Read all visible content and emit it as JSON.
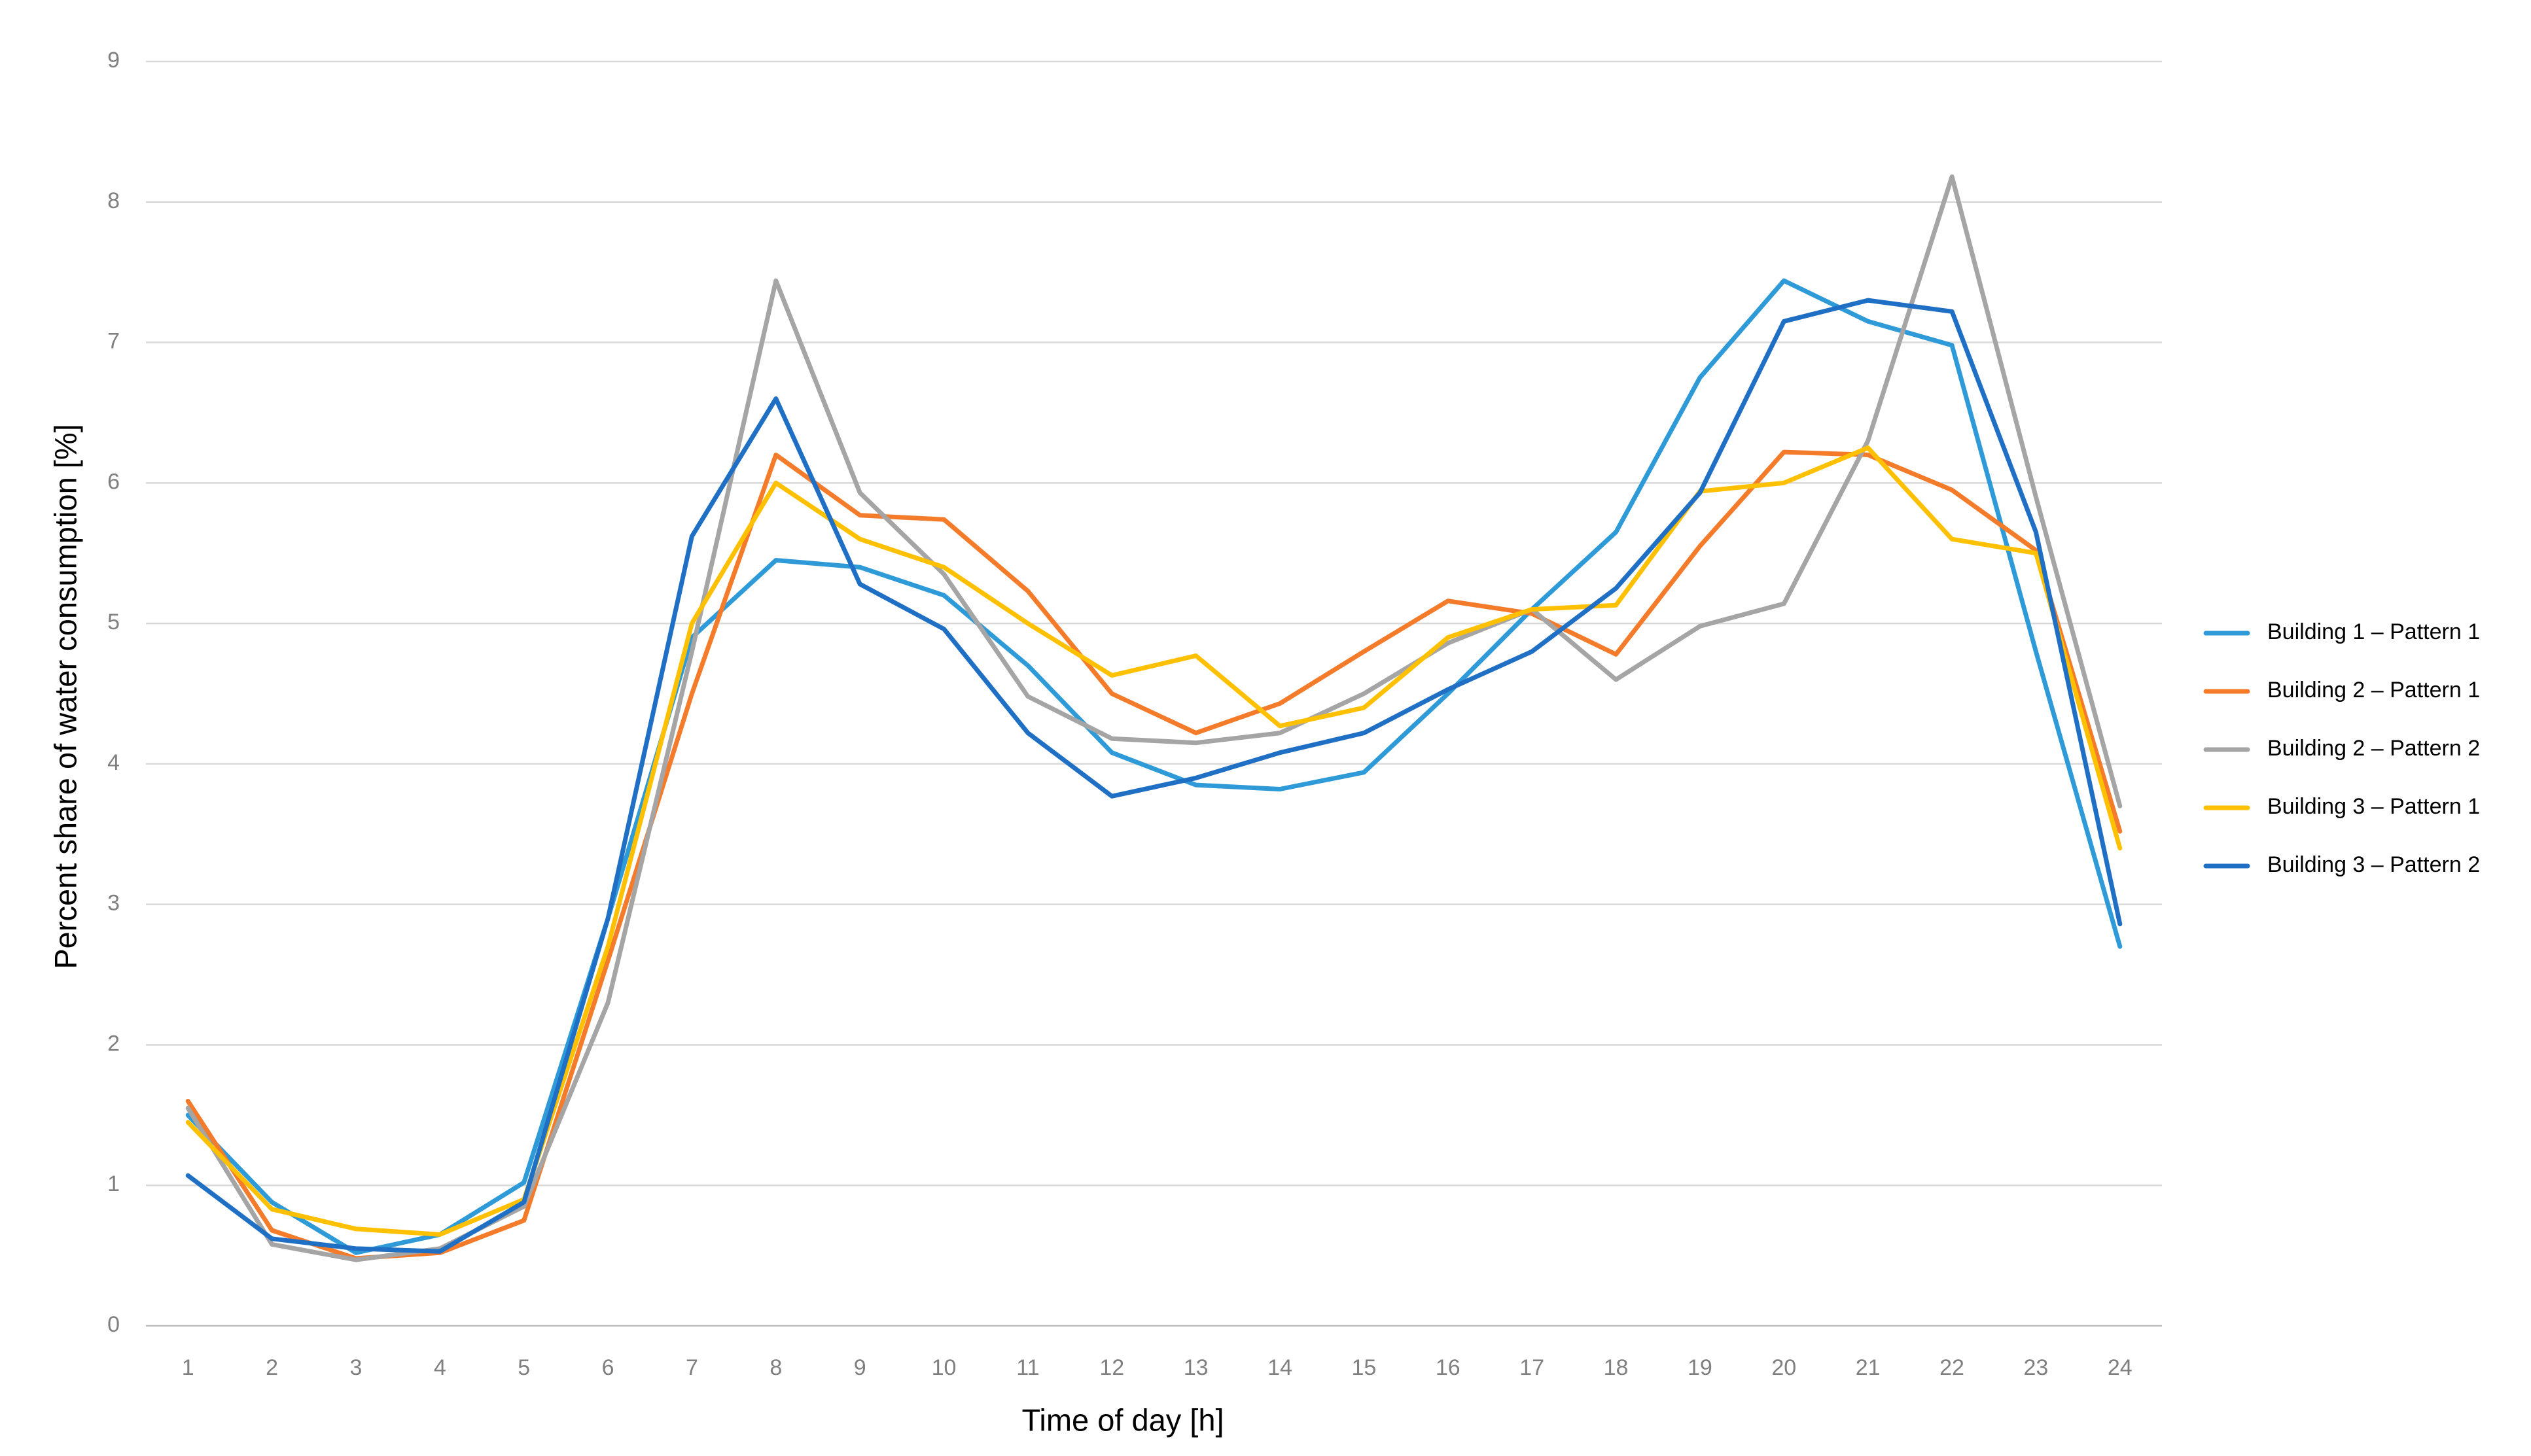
{
  "chart_data": {
    "type": "line",
    "x_label": "Time of day [h]",
    "y_label": "Percent share of water consumption [%]",
    "categories": [
      "1",
      "2",
      "3",
      "4",
      "5",
      "6",
      "7",
      "8",
      "9",
      "10",
      "11",
      "12",
      "13",
      "14",
      "15",
      "16",
      "17",
      "18",
      "19",
      "20",
      "21",
      "22",
      "23",
      "24"
    ],
    "ylim": [
      0,
      9
    ],
    "yticks": [
      0,
      1,
      2,
      3,
      4,
      5,
      6,
      7,
      8,
      9
    ],
    "grid": true,
    "legend": "right",
    "series": [
      {
        "name": "Building 1 – Pattern 1",
        "color": "#2e9ad8",
        "values": [
          1.5,
          0.88,
          0.52,
          0.65,
          1.02,
          2.9,
          4.9,
          5.45,
          5.4,
          5.2,
          4.7,
          4.08,
          3.85,
          3.82,
          3.94,
          4.5,
          5.1,
          5.65,
          6.75,
          7.44,
          7.15,
          6.98,
          4.8,
          2.7
        ]
      },
      {
        "name": "Building 2 – Pattern 1",
        "color": "#f47b2a",
        "values": [
          1.6,
          0.68,
          0.48,
          0.52,
          0.75,
          2.6,
          4.5,
          6.2,
          5.77,
          5.74,
          5.23,
          4.5,
          4.22,
          4.43,
          4.8,
          5.16,
          5.07,
          4.78,
          5.55,
          6.22,
          6.2,
          5.95,
          5.52,
          3.52
        ]
      },
      {
        "name": "Building 2 – Pattern 2",
        "color": "#a5a5a5",
        "values": [
          1.55,
          0.58,
          0.47,
          0.55,
          0.85,
          2.3,
          4.8,
          7.44,
          5.93,
          5.35,
          4.48,
          4.18,
          4.15,
          4.22,
          4.5,
          4.86,
          5.1,
          4.6,
          4.98,
          5.14,
          6.3,
          8.18,
          5.9,
          3.7
        ]
      },
      {
        "name": "Building 3 – Pattern 1",
        "color": "#ffc000",
        "values": [
          1.45,
          0.83,
          0.69,
          0.65,
          0.9,
          2.7,
          5.0,
          6.0,
          5.6,
          5.4,
          5.0,
          4.63,
          4.77,
          4.27,
          4.4,
          4.9,
          5.1,
          5.13,
          5.94,
          6.0,
          6.25,
          5.6,
          5.5,
          3.4
        ]
      },
      {
        "name": "Building 3 – Pattern 2",
        "color": "#1f6fc5",
        "values": [
          1.07,
          0.62,
          0.55,
          0.53,
          0.88,
          2.9,
          5.62,
          6.6,
          5.28,
          4.96,
          4.22,
          3.77,
          3.9,
          4.08,
          4.22,
          4.53,
          4.8,
          5.25,
          5.93,
          7.15,
          7.3,
          7.22,
          5.65,
          2.86
        ]
      }
    ]
  }
}
